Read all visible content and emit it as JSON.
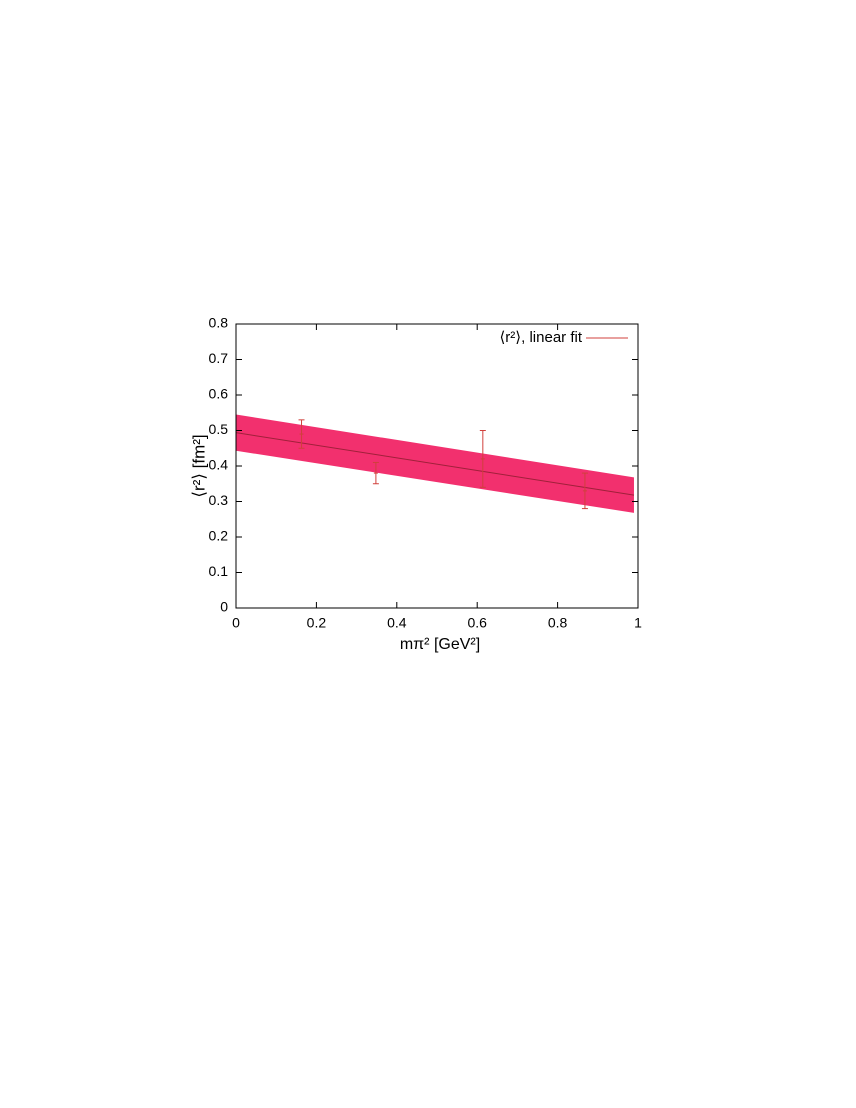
{
  "chart_data": {
    "type": "errorbar-fit",
    "x_label": "mπ² [GeV²]",
    "y_label": "⟨r²⟩ [fm²]",
    "legend": "⟨r²⟩, linear fit",
    "legend_position": "top-right",
    "xlim": [
      0,
      1
    ],
    "xticks": [
      0,
      0.2,
      0.4,
      0.6,
      0.8,
      1
    ],
    "ylim": [
      0,
      0.8
    ],
    "yticks": [
      0,
      0.1,
      0.2,
      0.3,
      0.4,
      0.5,
      0.6,
      0.7,
      0.8
    ],
    "points": {
      "color": "#d0403c",
      "x": [
        0.163,
        0.348,
        0.614,
        0.868
      ],
      "values": [
        0.49,
        0.38,
        0.42,
        0.33
      ],
      "lower": [
        0.45,
        0.35,
        0.34,
        0.28
      ],
      "upper": [
        0.53,
        0.41,
        0.5,
        0.38
      ]
    },
    "fit": {
      "line_color": "#a0203a",
      "band_color": "#f2306e",
      "x": [
        0,
        0.99
      ],
      "values": [
        0.494,
        0.318
      ],
      "lower": [
        0.443,
        0.268
      ],
      "upper": [
        0.545,
        0.368
      ]
    }
  }
}
